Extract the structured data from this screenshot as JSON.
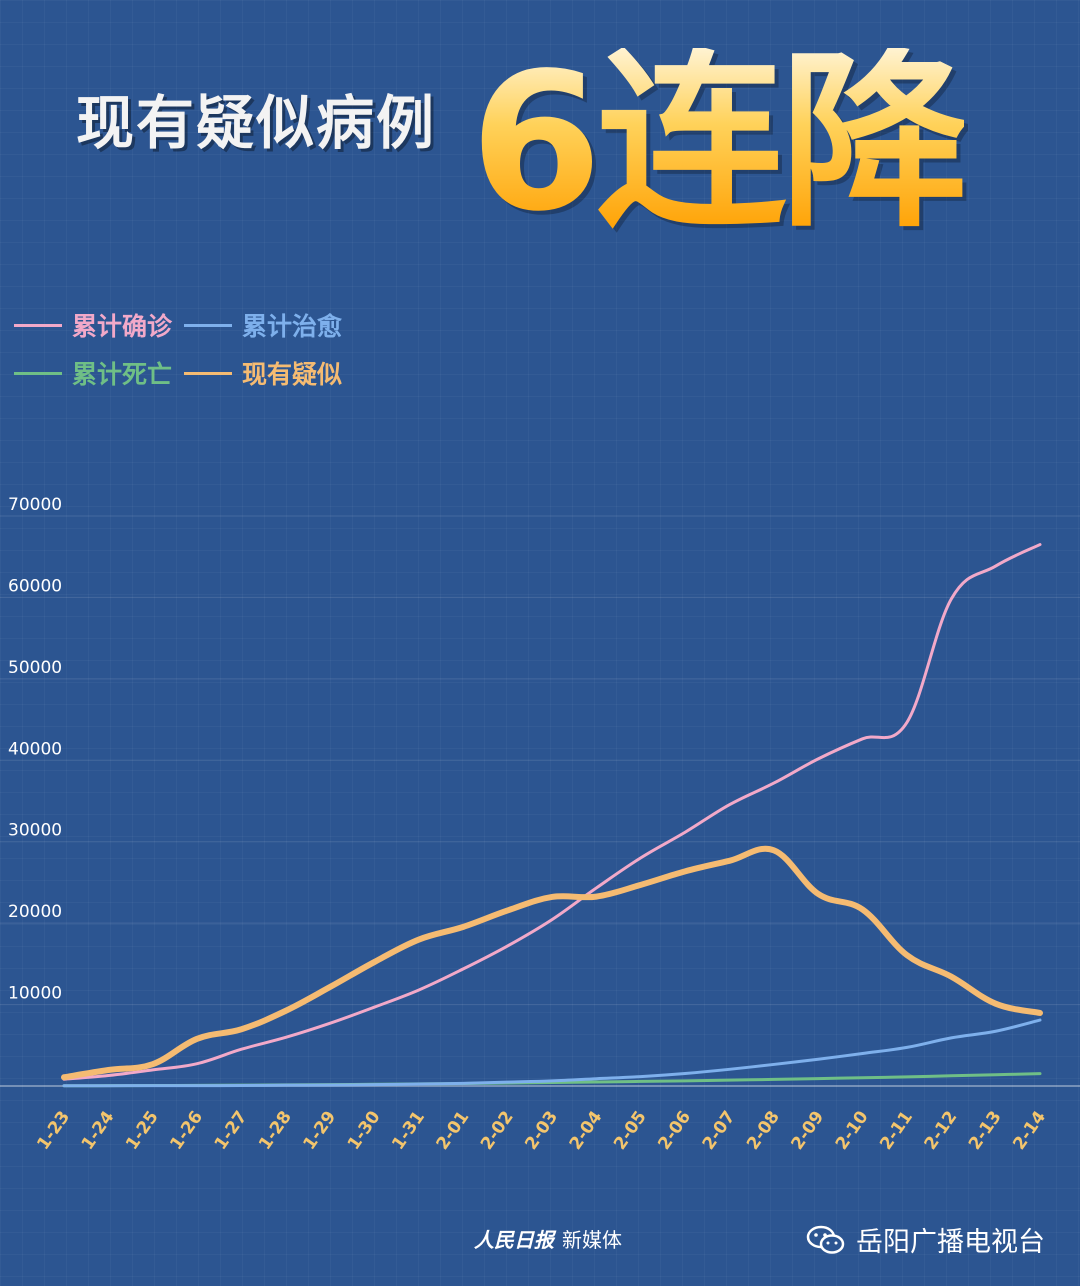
{
  "header": {
    "title_left": "现有疑似病例",
    "title_big": "6连降"
  },
  "legend": [
    {
      "label": "累计确诊",
      "color": "#f2a9c9"
    },
    {
      "label": "累计治愈",
      "color": "#7eb0ec"
    },
    {
      "label": "累计死亡",
      "color": "#6fbf86"
    },
    {
      "label": "现有疑似",
      "color": "#f5bb72"
    }
  ],
  "chart_data": {
    "type": "line",
    "title": "现有疑似病例6连降",
    "x": [
      "1-23",
      "1-24",
      "1-25",
      "1-26",
      "1-27",
      "1-28",
      "1-29",
      "1-30",
      "1-31",
      "2-01",
      "2-02",
      "2-03",
      "2-04",
      "2-05",
      "2-06",
      "2-07",
      "2-08",
      "2-09",
      "2-10",
      "2-11",
      "2-12",
      "2-13",
      "2-14"
    ],
    "y_ticks": [
      "10000",
      "20000",
      "30000",
      "40000",
      "50000",
      "60000",
      "70000"
    ],
    "ylim": [
      0,
      70000
    ],
    "grid": true,
    "legend_position": "top-left",
    "series": [
      {
        "name": "累计确诊",
        "color": "#f2a9c9",
        "width": 3,
        "values": [
          830,
          1287,
          1975,
          2744,
          4515,
          5974,
          7711,
          9692,
          11791,
          14380,
          17205,
          20438,
          24324,
          28018,
          31161,
          34546,
          37198,
          40171,
          42638,
          44653,
          59804,
          63851,
          66492
        ]
      },
      {
        "name": "累计治愈",
        "color": "#7eb0ec",
        "width": 3,
        "values": [
          34,
          38,
          49,
          51,
          60,
          103,
          124,
          171,
          243,
          328,
          475,
          632,
          892,
          1153,
          1540,
          2050,
          2649,
          3281,
          3996,
          4740,
          5911,
          6723,
          8096
        ]
      },
      {
        "name": "累计死亡",
        "color": "#6fbf86",
        "width": 3,
        "values": [
          25,
          41,
          56,
          80,
          106,
          132,
          170,
          213,
          259,
          304,
          361,
          425,
          490,
          563,
          636,
          722,
          811,
          908,
          1016,
          1113,
          1259,
          1380,
          1523
        ]
      },
      {
        "name": "现有疑似",
        "color": "#f5bb72",
        "width": 6,
        "values": [
          1072,
          1965,
          2684,
          5794,
          6973,
          9239,
          12167,
          15238,
          17988,
          19544,
          21558,
          23214,
          23260,
          24702,
          26359,
          27657,
          28942,
          23589,
          21675,
          16067,
          13435,
          10109,
          8969
        ]
      }
    ]
  },
  "footer": {
    "source_seal": "人民日报",
    "source_text": "新媒体",
    "channel": "岳阳广播电视台"
  }
}
